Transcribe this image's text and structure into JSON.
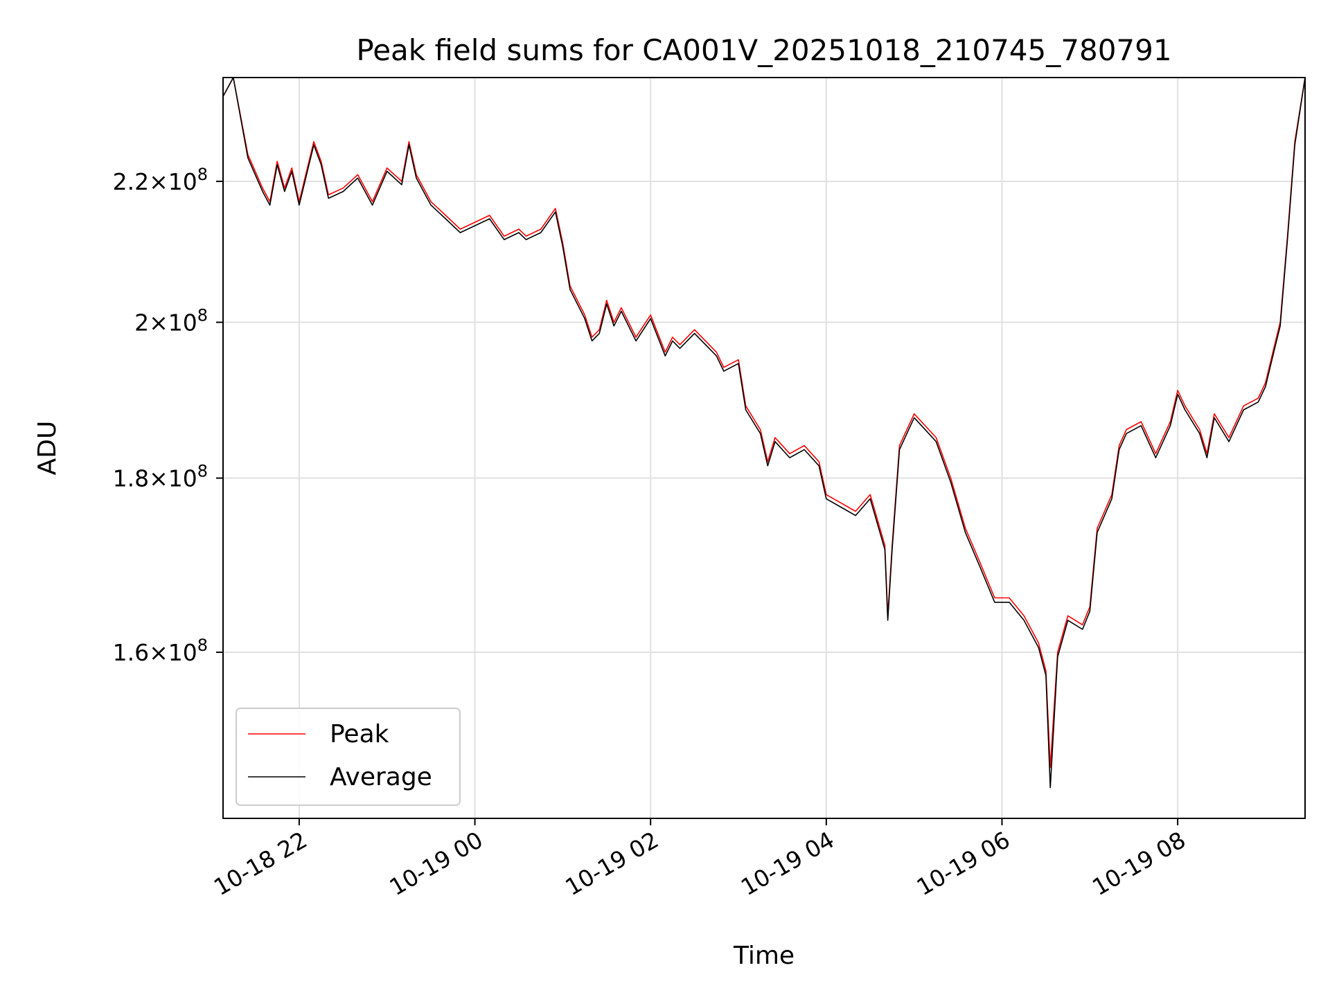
{
  "chart_data": {
    "type": "line",
    "title": "Peak field sums for CA001V_20251018_210745_780791",
    "xlabel": "Time",
    "ylabel": "ADU",
    "y_scale": "log",
    "x_range": [
      "2025-10-18 21:08",
      "2025-10-19 09:27"
    ],
    "ylim": [
      143000000,
      236000000
    ],
    "grid": true,
    "legend": {
      "placement": "lower-left",
      "entries": [
        "Peak",
        "Average"
      ]
    },
    "x_ticks": [
      {
        "value": "2025-10-18 22:00",
        "label": "10-18 22"
      },
      {
        "value": "2025-10-19 00:00",
        "label": "10-19 00"
      },
      {
        "value": "2025-10-19 02:00",
        "label": "10-19 02"
      },
      {
        "value": "2025-10-19 04:00",
        "label": "10-19 04"
      },
      {
        "value": "2025-10-19 06:00",
        "label": "10-19 06"
      },
      {
        "value": "2025-10-19 08:00",
        "label": "10-19 08"
      }
    ],
    "y_ticks": [
      {
        "value": 160000000,
        "mantissa": "1.6",
        "times": "×",
        "base": "10",
        "exp": "8"
      },
      {
        "value": 180000000,
        "mantissa": "1.8",
        "times": "×",
        "base": "10",
        "exp": "8"
      },
      {
        "value": 200000000,
        "mantissa": "2",
        "times": "×",
        "base": "10",
        "exp": "8"
      },
      {
        "value": 220000000,
        "mantissa": "2.2",
        "times": "×",
        "base": "10",
        "exp": "8"
      }
    ],
    "x": [
      "2025-10-18 21:08",
      "2025-10-18 21:15",
      "2025-10-18 21:25",
      "2025-10-18 21:35",
      "2025-10-18 21:40",
      "2025-10-18 21:45",
      "2025-10-18 21:50",
      "2025-10-18 21:55",
      "2025-10-18 22:00",
      "2025-10-18 22:10",
      "2025-10-18 22:15",
      "2025-10-18 22:20",
      "2025-10-18 22:30",
      "2025-10-18 22:40",
      "2025-10-18 22:50",
      "2025-10-18 23:00",
      "2025-10-18 23:10",
      "2025-10-18 23:15",
      "2025-10-18 23:20",
      "2025-10-18 23:30",
      "2025-10-18 23:40",
      "2025-10-18 23:50",
      "2025-10-19 00:00",
      "2025-10-19 00:10",
      "2025-10-19 00:20",
      "2025-10-19 00:30",
      "2025-10-19 00:35",
      "2025-10-19 00:45",
      "2025-10-19 00:55",
      "2025-10-19 01:00",
      "2025-10-19 01:05",
      "2025-10-19 01:15",
      "2025-10-19 01:20",
      "2025-10-19 01:25",
      "2025-10-19 01:30",
      "2025-10-19 01:35",
      "2025-10-19 01:40",
      "2025-10-19 01:50",
      "2025-10-19 02:00",
      "2025-10-19 02:10",
      "2025-10-19 02:15",
      "2025-10-19 02:20",
      "2025-10-19 02:30",
      "2025-10-19 02:40",
      "2025-10-19 02:45",
      "2025-10-19 02:50",
      "2025-10-19 03:00",
      "2025-10-19 03:05",
      "2025-10-19 03:15",
      "2025-10-19 03:20",
      "2025-10-19 03:25",
      "2025-10-19 03:35",
      "2025-10-19 03:45",
      "2025-10-19 03:55",
      "2025-10-19 04:00",
      "2025-10-19 04:10",
      "2025-10-19 04:20",
      "2025-10-19 04:30",
      "2025-10-19 04:40",
      "2025-10-19 04:42",
      "2025-10-19 04:45",
      "2025-10-19 04:50",
      "2025-10-19 05:00",
      "2025-10-19 05:10",
      "2025-10-19 05:15",
      "2025-10-19 05:25",
      "2025-10-19 05:35",
      "2025-10-19 05:45",
      "2025-10-19 05:55",
      "2025-10-19 06:05",
      "2025-10-19 06:15",
      "2025-10-19 06:25",
      "2025-10-19 06:30",
      "2025-10-19 06:33",
      "2025-10-19 06:38",
      "2025-10-19 06:45",
      "2025-10-19 06:55",
      "2025-10-19 07:00",
      "2025-10-19 07:05",
      "2025-10-19 07:15",
      "2025-10-19 07:20",
      "2025-10-19 07:25",
      "2025-10-19 07:35",
      "2025-10-19 07:45",
      "2025-10-19 07:55",
      "2025-10-19 08:00",
      "2025-10-19 08:05",
      "2025-10-19 08:15",
      "2025-10-19 08:20",
      "2025-10-19 08:25",
      "2025-10-19 08:35",
      "2025-10-19 08:45",
      "2025-10-19 08:55",
      "2025-10-19 09:00",
      "2025-10-19 09:05",
      "2025-10-19 09:10",
      "2025-10-19 09:15",
      "2025-10-19 09:20",
      "2025-10-19 09:27"
    ],
    "series": [
      {
        "name": "Peak",
        "color": "#ff0000",
        "values": [
          233000000,
          236000000,
          224000000,
          219000000,
          217000000,
          223000000,
          219000000,
          222000000,
          217000000,
          226000000,
          223000000,
          218000000,
          219000000,
          221000000,
          217000000,
          222000000,
          220000000,
          226000000,
          221000000,
          217000000,
          215000000,
          213000000,
          214000000,
          215000000,
          212000000,
          213000000,
          212000000,
          213000000,
          216000000,
          211000000,
          205000000,
          201000000,
          198000000,
          199000000,
          203000000,
          200000000,
          202000000,
          198000000,
          201000000,
          196000000,
          198000000,
          197000000,
          199000000,
          197000000,
          196000000,
          194000000,
          195000000,
          189000000,
          186000000,
          182000000,
          185000000,
          183000000,
          184000000,
          182000000,
          178000000,
          177000000,
          176000000,
          178000000,
          172000000,
          164000000,
          172000000,
          184000000,
          188000000,
          186000000,
          185000000,
          180000000,
          174000000,
          170000000,
          166000000,
          166000000,
          164000000,
          161000000,
          158000000,
          148000000,
          160000000,
          164000000,
          163000000,
          165000000,
          174000000,
          178000000,
          184000000,
          186000000,
          187000000,
          183000000,
          187000000,
          191000000,
          189000000,
          186000000,
          183000000,
          188000000,
          185000000,
          189000000,
          190000000,
          192000000,
          196000000,
          200000000,
          212000000,
          226000000,
          236000000
        ]
      },
      {
        "name": "Average",
        "color": "#000000",
        "values": [
          233000000,
          236000000,
          223500000,
          218500000,
          216500000,
          222500000,
          218500000,
          221500000,
          216500000,
          225500000,
          222500000,
          217500000,
          218500000,
          220500000,
          216500000,
          221500000,
          219500000,
          225500000,
          220500000,
          216500000,
          214500000,
          212500000,
          213500000,
          214500000,
          211500000,
          212500000,
          211500000,
          212500000,
          215500000,
          210500000,
          204500000,
          200500000,
          197500000,
          198500000,
          202500000,
          199500000,
          201500000,
          197500000,
          200500000,
          195500000,
          197500000,
          196500000,
          198500000,
          196500000,
          195500000,
          193500000,
          194500000,
          188500000,
          185500000,
          181500000,
          184500000,
          182500000,
          183500000,
          181500000,
          177500000,
          176500000,
          175500000,
          177500000,
          171500000,
          163500000,
          171500000,
          183500000,
          187500000,
          185500000,
          184500000,
          179500000,
          173500000,
          169500000,
          165500000,
          165500000,
          163500000,
          160500000,
          157500000,
          146000000,
          159500000,
          163500000,
          162500000,
          164500000,
          173500000,
          177500000,
          183500000,
          185500000,
          186500000,
          182500000,
          186500000,
          190500000,
          188500000,
          185500000,
          182500000,
          187500000,
          184500000,
          188500000,
          189500000,
          191500000,
          195500000,
          199500000,
          211500000,
          225500000,
          236000000
        ]
      }
    ]
  }
}
